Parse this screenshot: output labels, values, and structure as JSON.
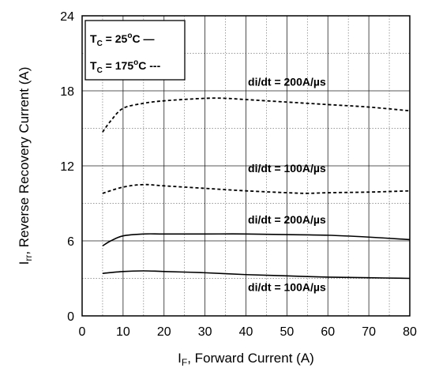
{
  "chart_data": {
    "type": "line",
    "xlabel": {
      "main": "I",
      "sub": "F",
      "rest": ", Forward Current (A)"
    },
    "ylabel": {
      "main": "I",
      "sub": "rr",
      "rest": ", Reverse Recovery Current (A)"
    },
    "xlim": [
      0,
      80
    ],
    "ylim": [
      0,
      24
    ],
    "xticks": [
      0,
      10,
      20,
      30,
      40,
      50,
      60,
      70,
      80
    ],
    "yticks": [
      0,
      6,
      12,
      18,
      24
    ],
    "grid": true,
    "minor_grid": true,
    "legend": {
      "placement": "top-left",
      "entries": [
        {
          "main": "T",
          "sub": "C",
          "rest": " = 25",
          "deg": "o",
          "unit": "C",
          "style": "solid",
          "marker": "—"
        },
        {
          "main": "T",
          "sub": "C",
          "rest": " = 175",
          "deg": "o",
          "unit": "C",
          "style": "dashed",
          "marker": "---"
        }
      ]
    },
    "annotations": [
      {
        "text": "di/dt = 200A/µs",
        "x": 50,
        "y": 18.4
      },
      {
        "text": "di/dt = 100A/µs",
        "x": 50,
        "y": 11.5
      },
      {
        "text": "di/dt = 200A/µs",
        "x": 50,
        "y": 7.4
      },
      {
        "text": "di/dt = 100A/µs",
        "x": 50,
        "y": 2.0
      }
    ],
    "series": [
      {
        "style": "dashed",
        "x": [
          5,
          7,
          10,
          15,
          20,
          30,
          35,
          40,
          50,
          60,
          70,
          80
        ],
        "y": [
          14.7,
          15.6,
          16.6,
          17.0,
          17.2,
          17.4,
          17.4,
          17.3,
          17.1,
          16.9,
          16.7,
          16.4
        ]
      },
      {
        "style": "dashed",
        "x": [
          5,
          10,
          15,
          20,
          30,
          40,
          50,
          55,
          60,
          70,
          80
        ],
        "y": [
          9.8,
          10.3,
          10.5,
          10.4,
          10.2,
          10.0,
          9.85,
          9.8,
          9.85,
          9.9,
          10.0
        ]
      },
      {
        "style": "solid",
        "x": [
          5,
          7,
          10,
          15,
          20,
          30,
          40,
          50,
          60,
          70,
          80
        ],
        "y": [
          5.6,
          6.0,
          6.4,
          6.55,
          6.55,
          6.55,
          6.55,
          6.5,
          6.45,
          6.3,
          6.1
        ]
      },
      {
        "style": "solid",
        "x": [
          5,
          10,
          15,
          20,
          30,
          40,
          50,
          60,
          70,
          80
        ],
        "y": [
          3.4,
          3.55,
          3.6,
          3.55,
          3.45,
          3.3,
          3.2,
          3.1,
          3.05,
          3.0
        ]
      }
    ]
  }
}
